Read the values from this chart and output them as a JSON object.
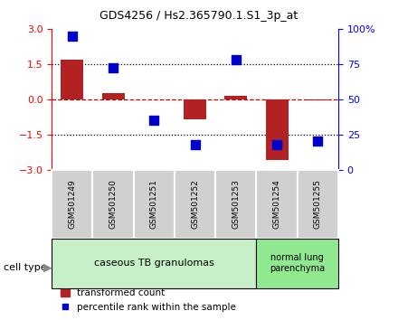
{
  "title": "GDS4256 / Hs2.365790.1.S1_3p_at",
  "samples": [
    "GSM501249",
    "GSM501250",
    "GSM501251",
    "GSM501252",
    "GSM501253",
    "GSM501254",
    "GSM501255"
  ],
  "transformed_count": [
    1.7,
    0.25,
    0.0,
    -0.85,
    0.15,
    -2.6,
    -0.05
  ],
  "percentile_rank_raw": [
    95,
    72,
    35,
    18,
    78,
    18,
    20
  ],
  "group1_label": "caseous TB granulomas",
  "group2_label": "normal lung\nparenchyma",
  "ylim": [
    -3,
    3
  ],
  "yticks_left": [
    -3,
    -1.5,
    0,
    1.5,
    3
  ],
  "yticks_right_pct": [
    0,
    25,
    50,
    75,
    100
  ],
  "bar_color": "#b22222",
  "dot_color": "#0000cc",
  "group1_bg": "#c8f0c8",
  "group2_bg": "#90e890",
  "cell_type_label": "cell type",
  "legend1": "transformed count",
  "legend2": "percentile rank within the sample",
  "hline_color": "#cc0000",
  "dotline_color": "#000000",
  "bar_width": 0.55
}
